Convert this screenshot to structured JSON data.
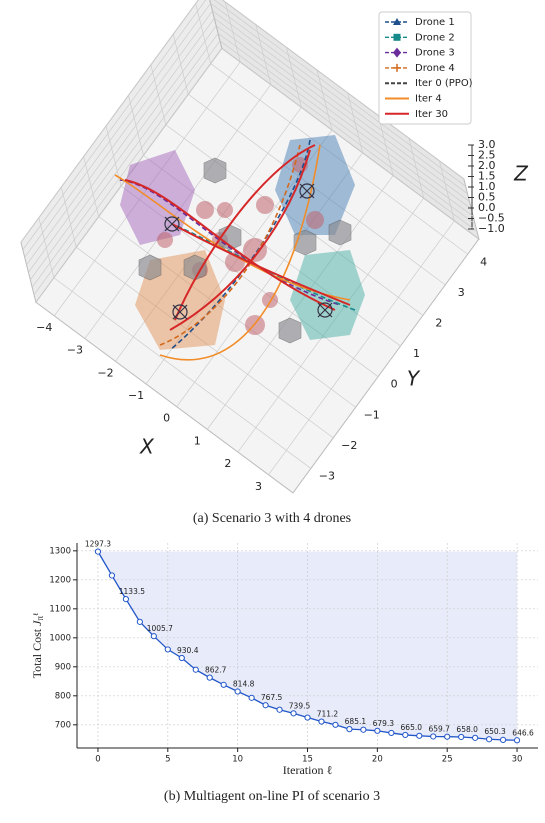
{
  "chart_data": [
    {
      "type": "line3d",
      "caption": "(a) Scenario 3 with 4 drones",
      "xlabel": "X",
      "ylabel": "Y",
      "zlabel": "Z",
      "xlim": [
        -4.6,
        3.8
      ],
      "ylim": [
        -3.8,
        4.5
      ],
      "zlim": [
        -1,
        3
      ],
      "xticks": [
        {
          "value": -4,
          "label": "−4"
        },
        {
          "value": -3,
          "label": "−3"
        },
        {
          "value": -2,
          "label": "−2"
        },
        {
          "value": -1,
          "label": "−1"
        },
        0,
        1,
        2,
        3
      ],
      "yticks": [
        {
          "value": -3,
          "label": "−3"
        },
        {
          "value": -2,
          "label": "−2"
        },
        {
          "value": -1,
          "label": "−1"
        },
        0,
        1,
        2,
        3,
        4
      ],
      "zticks": [
        {
          "value": 3,
          "label": "3.0"
        },
        2.5,
        {
          "value": 2,
          "label": "2.0"
        },
        1.5,
        {
          "value": 1,
          "label": "1.0"
        },
        0.5,
        {
          "value": 0,
          "label": "0.0"
        },
        {
          "value": -0.5,
          "label": "−0.5"
        },
        {
          "value": -1,
          "label": "−1.0"
        }
      ],
      "series": [
        {
          "name": "Drone 1",
          "color": "#1f4e8c",
          "marker": "triangle"
        },
        {
          "name": "Drone 2",
          "color": "#16898a",
          "marker": "square"
        },
        {
          "name": "Drone 3",
          "color": "#6a2c9a",
          "marker": "diamond"
        },
        {
          "name": "Drone 4",
          "color": "#d2691e",
          "marker": "plus"
        },
        {
          "name": "Iter 0 (PPO)",
          "color": "#444444",
          "dash": true
        },
        {
          "name": "Iter 4",
          "color": "#f28c28"
        },
        {
          "name": "Iter 30",
          "color": "#d62728"
        }
      ]
    },
    {
      "type": "line",
      "caption": "(b) Multiagent on-line PI of scenario 3",
      "xlabel": "Iteration ℓ",
      "ylabel": "Total Cost",
      "ylabel_symbol": "J",
      "ylabel_subscript": "π",
      "ylabel_superscript": "ℓ",
      "x": [
        0,
        1,
        2,
        3,
        4,
        5,
        6,
        7,
        8,
        9,
        10,
        11,
        12,
        13,
        14,
        15,
        16,
        17,
        18,
        19,
        20,
        21,
        22,
        23,
        24,
        25,
        26,
        27,
        28,
        29,
        30
      ],
      "values": [
        1297.3,
        1215,
        1133.5,
        1055,
        1005.7,
        960,
        930.4,
        890,
        862.7,
        838,
        814.8,
        793,
        767.5,
        752,
        739.5,
        725,
        711.2,
        700,
        685.1,
        683,
        679.3,
        672,
        665.0,
        662,
        659.7,
        659,
        658.0,
        655,
        650.3,
        648,
        646.6
      ],
      "value_labels": [
        "1297.3",
        null,
        "1133.5",
        null,
        "1005.7",
        null,
        "930.4",
        null,
        "862.7",
        null,
        "814.8",
        null,
        "767.5",
        null,
        "739.5",
        null,
        "711.2",
        null,
        "685.1",
        null,
        "679.3",
        null,
        "665.0",
        null,
        "659.7",
        null,
        "658.0",
        null,
        "650.3",
        null,
        "646.6"
      ],
      "color": "#2156c9",
      "shade_color": "#e8ebfa",
      "xlim": [
        -1.5,
        31.5
      ],
      "ylim": [
        620,
        1327
      ],
      "xticks": [
        0,
        5,
        10,
        15,
        20,
        25,
        30
      ],
      "yticks": [
        700,
        800,
        900,
        1000,
        1100,
        1200,
        1300
      ],
      "grid": true
    }
  ]
}
